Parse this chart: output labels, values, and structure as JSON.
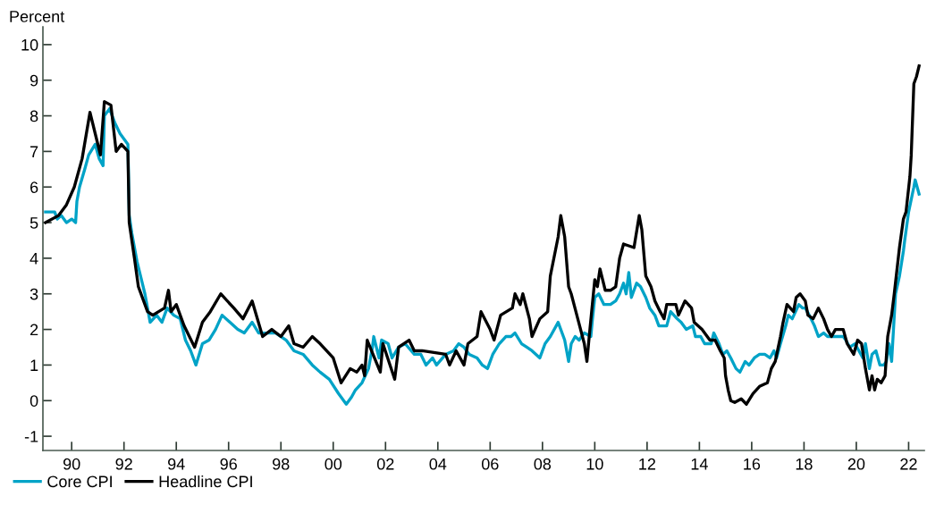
{
  "chart_data": {
    "type": "line",
    "ylabel": "Percent",
    "xlim": [
      1988.9,
      2022.6
    ],
    "ylim": [
      -1.4,
      10.5
    ],
    "yticks": [
      -1,
      0,
      1,
      2,
      3,
      4,
      5,
      6,
      7,
      8,
      9,
      10
    ],
    "xticks": [
      {
        "value": 1990,
        "label": "90"
      },
      {
        "value": 1992,
        "label": "92"
      },
      {
        "value": 1994,
        "label": "94"
      },
      {
        "value": 1996,
        "label": "96"
      },
      {
        "value": 1998,
        "label": "98"
      },
      {
        "value": 2000,
        "label": "00"
      },
      {
        "value": 2002,
        "label": "02"
      },
      {
        "value": 2004,
        "label": "04"
      },
      {
        "value": 2006,
        "label": "06"
      },
      {
        "value": 2008,
        "label": "08"
      },
      {
        "value": 2010,
        "label": "10"
      },
      {
        "value": 2012,
        "label": "12"
      },
      {
        "value": 2014,
        "label": "14"
      },
      {
        "value": 2016,
        "label": "16"
      },
      {
        "value": 2018,
        "label": "18"
      },
      {
        "value": 2020,
        "label": "20"
      },
      {
        "value": 2022,
        "label": "22"
      }
    ],
    "grid": false,
    "legend": "bottom left",
    "marker": "none",
    "line_style": "solid",
    "series": [
      {
        "name": "Core CPI",
        "color": "#00a3c7",
        "x": [
          1989.0,
          1989.35,
          1989.45,
          1989.6,
          1989.8,
          1990.0,
          1990.15,
          1990.2,
          1990.3,
          1990.5,
          1990.65,
          1990.9,
          1991.05,
          1991.2,
          1991.25,
          1991.45,
          1991.65,
          1991.85,
          1992.15,
          1992.2,
          1992.3,
          1992.5,
          1992.8,
          1993.0,
          1993.25,
          1993.45,
          1993.65,
          1993.9,
          1994.15,
          1994.35,
          1994.55,
          1994.75,
          1995.0,
          1995.25,
          1995.5,
          1995.75,
          1996.05,
          1996.35,
          1996.6,
          1996.9,
          1997.15,
          1997.5,
          1997.8,
          1998.2,
          1998.5,
          1998.85,
          1999.2,
          1999.5,
          1999.85,
          2000.2,
          2000.5,
          2000.7,
          2000.85,
          2001.1,
          2001.35,
          2001.5,
          2001.55,
          2001.75,
          2001.85,
          2002.1,
          2002.25,
          2002.5,
          2002.75,
          2003.1,
          2003.35,
          2003.55,
          2003.8,
          2003.95,
          2004.3,
          2004.6,
          2004.8,
          2005.0,
          2005.2,
          2005.5,
          2005.7,
          2005.9,
          2006.1,
          2006.35,
          2006.6,
          2006.8,
          2006.95,
          2007.2,
          2007.4,
          2007.6,
          2007.9,
          2008.1,
          2008.3,
          2008.6,
          2008.85,
          2009.0,
          2009.1,
          2009.25,
          2009.4,
          2009.6,
          2009.85,
          2009.9,
          2010.0,
          2010.15,
          2010.35,
          2010.6,
          2010.8,
          2010.95,
          2011.1,
          2011.2,
          2011.3,
          2011.4,
          2011.6,
          2011.75,
          2011.95,
          2012.1,
          2012.3,
          2012.45,
          2012.75,
          2012.9,
          2013.15,
          2013.3,
          2013.5,
          2013.75,
          2013.85,
          2014.05,
          2014.2,
          2014.45,
          2014.55,
          2014.75,
          2014.9,
          2015.05,
          2015.2,
          2015.4,
          2015.55,
          2015.75,
          2015.9,
          2016.1,
          2016.3,
          2016.5,
          2016.7,
          2016.85,
          2016.95,
          2017.1,
          2017.3,
          2017.4,
          2017.55,
          2017.8,
          2017.95,
          2018.05,
          2018.2,
          2018.4,
          2018.55,
          2018.75,
          2018.9,
          2019.15,
          2019.5,
          2019.6,
          2019.75,
          2019.95,
          2020.1,
          2020.25,
          2020.35,
          2020.5,
          2020.6,
          2020.75,
          2020.9,
          2021.05,
          2021.15,
          2021.25,
          2021.35,
          2021.5,
          2021.65,
          2021.8,
          2021.85,
          2022.0,
          2022.2,
          2022.25,
          2022.4
        ],
        "values": [
          5.3,
          5.3,
          5.1,
          5.2,
          5.0,
          5.1,
          5.0,
          5.6,
          6.0,
          6.5,
          6.9,
          7.2,
          6.8,
          6.6,
          8.0,
          8.2,
          7.8,
          7.5,
          7.2,
          5.2,
          4.7,
          3.9,
          3.0,
          2.2,
          2.4,
          2.2,
          2.6,
          2.4,
          2.3,
          1.7,
          1.4,
          1.0,
          1.6,
          1.7,
          2.0,
          2.4,
          2.2,
          2.0,
          1.9,
          2.2,
          1.9,
          1.9,
          1.9,
          1.7,
          1.4,
          1.3,
          1.0,
          0.8,
          0.6,
          0.2,
          -0.1,
          0.1,
          0.3,
          0.5,
          0.9,
          1.5,
          1.8,
          1.2,
          1.7,
          1.6,
          1.2,
          1.5,
          1.6,
          1.3,
          1.3,
          1.0,
          1.2,
          1.0,
          1.3,
          1.4,
          1.6,
          1.5,
          1.3,
          1.2,
          1.0,
          0.9,
          1.3,
          1.6,
          1.8,
          1.8,
          1.9,
          1.6,
          1.5,
          1.4,
          1.2,
          1.6,
          1.8,
          2.2,
          1.7,
          1.1,
          1.6,
          1.8,
          1.7,
          1.9,
          1.8,
          2.2,
          2.9,
          3.0,
          2.7,
          2.7,
          2.8,
          3.0,
          3.3,
          3.0,
          3.6,
          2.9,
          3.3,
          3.2,
          2.9,
          2.6,
          2.4,
          2.1,
          2.1,
          2.5,
          2.3,
          2.2,
          2.0,
          2.1,
          1.8,
          1.8,
          1.6,
          1.6,
          1.9,
          1.6,
          1.3,
          1.4,
          1.2,
          0.9,
          0.8,
          1.1,
          1.0,
          1.2,
          1.3,
          1.3,
          1.2,
          1.4,
          1.2,
          1.6,
          2.1,
          2.4,
          2.3,
          2.7,
          2.6,
          2.6,
          2.4,
          2.1,
          1.8,
          1.9,
          1.8,
          1.8,
          1.8,
          1.7,
          1.5,
          1.6,
          1.4,
          1.2,
          1.6,
          0.9,
          1.3,
          1.4,
          1.0,
          1.0,
          1.1,
          1.6,
          1.1,
          3.0,
          3.5,
          4.2,
          4.5,
          5.3,
          6.0,
          6.2,
          5.8
        ]
      },
      {
        "name": "Headline CPI",
        "color": "#000000",
        "x": [
          1989.0,
          1989.5,
          1989.8,
          1990.1,
          1990.4,
          1990.7,
          1990.9,
          1991.1,
          1991.25,
          1991.5,
          1991.7,
          1991.9,
          1992.15,
          1992.2,
          1992.4,
          1992.55,
          1992.9,
          1993.1,
          1993.55,
          1993.7,
          1993.8,
          1994.0,
          1994.3,
          1994.7,
          1995.0,
          1995.3,
          1995.7,
          1996.2,
          1996.55,
          1996.9,
          1997.3,
          1997.65,
          1998.0,
          1998.3,
          1998.5,
          1998.85,
          1999.2,
          1999.5,
          2000.0,
          2000.3,
          2000.65,
          2000.9,
          2001.1,
          2001.2,
          2001.3,
          2001.8,
          2001.9,
          2002.35,
          2002.5,
          2002.9,
          2003.1,
          2003.4,
          2004.3,
          2004.45,
          2004.7,
          2005.0,
          2005.15,
          2005.5,
          2005.65,
          2006.0,
          2006.15,
          2006.4,
          2006.85,
          2006.95,
          2007.15,
          2007.25,
          2007.5,
          2007.6,
          2007.9,
          2008.2,
          2008.3,
          2008.6,
          2008.7,
          2008.85,
          2009.0,
          2009.1,
          2009.35,
          2009.6,
          2009.7,
          2009.8,
          2010.0,
          2010.1,
          2010.2,
          2010.4,
          2010.6,
          2010.8,
          2010.95,
          2011.1,
          2011.5,
          2011.7,
          2011.8,
          2011.95,
          2012.15,
          2012.3,
          2012.5,
          2012.65,
          2012.75,
          2013.1,
          2013.2,
          2013.45,
          2013.7,
          2013.8,
          2014.1,
          2014.4,
          2014.6,
          2014.8,
          2014.95,
          2015.0,
          2015.1,
          2015.2,
          2015.35,
          2015.6,
          2015.8,
          2016.05,
          2016.3,
          2016.6,
          2016.75,
          2016.9,
          2017.1,
          2017.2,
          2017.35,
          2017.6,
          2017.7,
          2017.85,
          2018.05,
          2018.15,
          2018.35,
          2018.55,
          2018.75,
          2018.9,
          2019.05,
          2019.2,
          2019.5,
          2019.65,
          2019.9,
          2020.05,
          2020.2,
          2020.35,
          2020.5,
          2020.6,
          2020.7,
          2020.8,
          2020.95,
          2021.1,
          2021.2,
          2021.35,
          2021.45,
          2021.65,
          2021.8,
          2021.9,
          2022.05,
          2022.1,
          2022.2,
          2022.3,
          2022.4
        ],
        "values": [
          5.0,
          5.2,
          5.5,
          6.0,
          6.8,
          8.1,
          7.5,
          6.9,
          8.4,
          8.3,
          7.0,
          7.2,
          7.0,
          5.0,
          4.0,
          3.2,
          2.5,
          2.4,
          2.6,
          3.1,
          2.5,
          2.7,
          2.1,
          1.5,
          2.2,
          2.5,
          3.0,
          2.6,
          2.3,
          2.8,
          1.8,
          2.0,
          1.8,
          2.1,
          1.6,
          1.5,
          1.8,
          1.6,
          1.2,
          0.5,
          0.9,
          0.8,
          1.0,
          0.7,
          1.7,
          0.8,
          1.6,
          0.6,
          1.5,
          1.7,
          1.4,
          1.4,
          1.3,
          1.0,
          1.4,
          1.0,
          1.6,
          1.8,
          2.5,
          2.0,
          1.7,
          2.4,
          2.6,
          3.0,
          2.7,
          3.0,
          2.3,
          1.8,
          2.3,
          2.5,
          3.5,
          4.6,
          5.2,
          4.6,
          3.2,
          3.0,
          2.3,
          1.6,
          1.1,
          1.9,
          3.4,
          3.2,
          3.7,
          3.1,
          3.1,
          3.2,
          4.0,
          4.4,
          4.3,
          5.2,
          4.8,
          3.5,
          3.2,
          2.8,
          2.5,
          2.3,
          2.7,
          2.7,
          2.4,
          2.8,
          2.6,
          2.2,
          2.0,
          1.7,
          1.7,
          1.4,
          1.2,
          0.7,
          0.3,
          0.0,
          -0.05,
          0.05,
          -0.1,
          0.2,
          0.4,
          0.5,
          0.9,
          1.1,
          1.8,
          2.2,
          2.7,
          2.5,
          2.9,
          3.0,
          2.8,
          2.4,
          2.3,
          2.6,
          2.3,
          2.0,
          1.8,
          2.0,
          2.0,
          1.6,
          1.3,
          1.7,
          1.6,
          0.9,
          0.3,
          0.7,
          0.3,
          0.6,
          0.5,
          0.7,
          1.8,
          2.4,
          3.0,
          4.3,
          5.1,
          5.3,
          6.3,
          6.9,
          8.9,
          9.1,
          9.4
        ]
      }
    ]
  }
}
